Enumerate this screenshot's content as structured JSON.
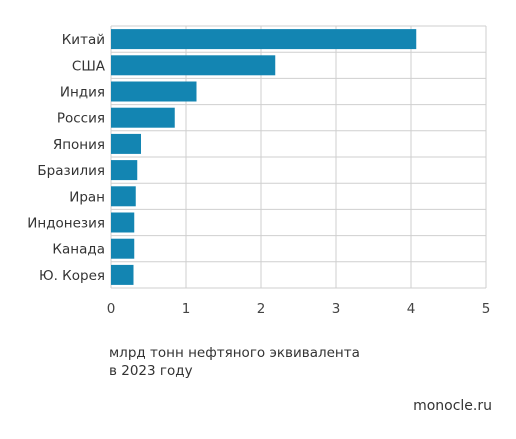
{
  "chart_data": {
    "type": "bar",
    "orientation": "horizontal",
    "categories": [
      "Китай",
      "США",
      "Индия",
      "Россия",
      "Япония",
      "Бразилия",
      "Иран",
      "Индонезия",
      "Канада",
      "Ю. Корея"
    ],
    "values": [
      4.07,
      2.19,
      1.14,
      0.85,
      0.4,
      0.35,
      0.33,
      0.31,
      0.31,
      0.3
    ],
    "xlim": [
      0,
      5
    ],
    "xticks": [
      "0",
      "1",
      "2",
      "3",
      "4",
      "5"
    ],
    "xlabel_lines": [
      "млрд тонн нефтяного эквивалента",
      "в 2023 году"
    ],
    "grid": true,
    "bar_color": "#1385b2"
  },
  "source": "monocle.ru"
}
